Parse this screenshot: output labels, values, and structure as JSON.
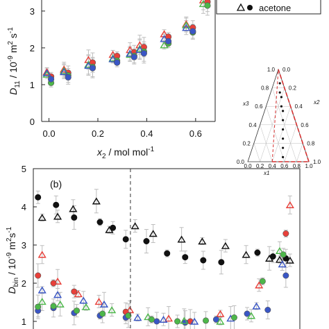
{
  "colors": {
    "red": "#e8403a",
    "green": "#4db74a",
    "blue": "#3a56c5",
    "black": "#111111",
    "error": "#bdbdbd",
    "frame": "#222222",
    "dash": "#d62e2e"
  },
  "chart_data": [
    {
      "type": "scatter",
      "panel_label": "",
      "xlabel": "x2 / mol mol-1",
      "ylabel": "D11 / 10-9 m2 s-1",
      "xlim": [
        -0.03,
        0.68
      ],
      "ylim": [
        0,
        3.3
      ],
      "x_ticks": [
        "0.0",
        "0.2",
        "0.4",
        "0.6"
      ],
      "y_ticks": [
        "0",
        "1",
        "2",
        "3"
      ],
      "legend": {
        "label": "acetone",
        "markers": [
          "open-triangle",
          "filled-circle"
        ],
        "placement": "top-right"
      },
      "series": [
        {
          "color": "red",
          "marker": "triangle",
          "x": [
            0.0,
            0.07,
            0.17,
            0.27,
            0.34,
            0.38,
            0.48,
            0.57,
            0.64
          ],
          "y": [
            1.35,
            1.42,
            1.68,
            1.82,
            1.95,
            2.08,
            2.38,
            2.65,
            3.3
          ]
        },
        {
          "color": "red",
          "marker": "circle",
          "x": [
            0.0,
            0.07,
            0.17,
            0.27,
            0.34,
            0.38,
            0.48,
            0.58,
            0.64
          ],
          "y": [
            1.22,
            1.32,
            1.6,
            1.78,
            1.88,
            2.02,
            2.3,
            2.55,
            3.25
          ]
        },
        {
          "color": "green",
          "marker": "triangle",
          "x": [
            0.0,
            0.07,
            0.17,
            0.27,
            0.34,
            0.38,
            0.48,
            0.57,
            0.64
          ],
          "y": [
            1.28,
            1.38,
            1.55,
            1.72,
            1.82,
            1.98,
            2.08,
            2.62,
            3.2
          ]
        },
        {
          "color": "green",
          "marker": "circle",
          "x": [
            0.0,
            0.07,
            0.17,
            0.27,
            0.34,
            0.38,
            0.48,
            0.58,
            0.64
          ],
          "y": [
            1.05,
            1.25,
            1.48,
            1.65,
            1.78,
            1.9,
            2.12,
            2.42,
            3.15
          ]
        },
        {
          "color": "blue",
          "marker": "triangle",
          "x": [
            0.0,
            0.07,
            0.17,
            0.27,
            0.34,
            0.38,
            0.48,
            0.57
          ],
          "y": [
            1.32,
            1.35,
            1.52,
            1.7,
            1.85,
            1.95,
            2.25,
            2.55
          ]
        },
        {
          "color": "blue",
          "marker": "circle",
          "x": [
            0.0,
            0.07,
            0.17,
            0.27,
            0.34,
            0.38,
            0.48,
            0.58
          ],
          "y": [
            1.15,
            1.2,
            1.45,
            1.6,
            1.75,
            1.85,
            2.18,
            2.45
          ]
        }
      ]
    },
    {
      "type": "ternary",
      "axis_labels": [
        "x1",
        "x2",
        "x3"
      ],
      "ticks": [
        "0.0",
        "0.2",
        "0.4",
        "0.6",
        "0.8",
        "1.0"
      ],
      "points": [
        [
          0.55,
          0.05
        ],
        [
          0.5,
          0.15
        ],
        [
          0.45,
          0.25
        ],
        [
          0.4,
          0.35
        ],
        [
          0.35,
          0.45
        ],
        [
          0.3,
          0.55
        ],
        [
          0.25,
          0.6
        ],
        [
          0.2,
          0.7
        ],
        [
          0.15,
          0.75
        ],
        [
          0.1,
          0.85
        ]
      ]
    },
    {
      "type": "scatter",
      "panel_label": "(b)",
      "ylabel": "Dbin / 10-9 m2 s-1",
      "xlim": [
        0,
        1
      ],
      "ylim": [
        0.9,
        5
      ],
      "y_ticks": [
        "1",
        "2",
        "3",
        "4",
        "5"
      ],
      "dashed_vline_x": 0.36,
      "series": [
        {
          "color": "black",
          "marker": "triangle",
          "x": [
            0.01,
            0.07,
            0.13,
            0.22,
            0.27,
            0.37,
            0.44,
            0.55,
            0.63,
            0.72,
            0.8,
            0.89,
            0.93,
            0.97
          ],
          "y": [
            3.72,
            3.75,
            3.95,
            4.15,
            3.4,
            3.5,
            3.3,
            3.15,
            3.1,
            2.98,
            2.75,
            2.65,
            2.62,
            2.6
          ]
        },
        {
          "color": "black",
          "marker": "circle",
          "x": [
            0.01,
            0.08,
            0.15,
            0.25,
            0.3,
            0.35,
            0.43,
            0.51,
            0.58,
            0.65,
            0.72,
            0.86,
            0.92,
            0.97
          ],
          "y": [
            4.25,
            4.05,
            3.72,
            3.6,
            3.45,
            3.15,
            3.1,
            2.78,
            2.68,
            2.6,
            2.55,
            2.8,
            2.7,
            2.65
          ]
        },
        {
          "color": "red",
          "marker": "triangle",
          "x": [
            0.01,
            0.07,
            0.15,
            0.23,
            0.35,
            0.5,
            0.7,
            0.85,
            0.97
          ],
          "y": [
            2.75,
            2.05,
            1.72,
            1.52,
            1.3,
            1.08,
            1.2,
            1.95,
            4.05
          ]
        },
        {
          "color": "red",
          "marker": "circle",
          "x": [
            0.01,
            0.07,
            0.15,
            0.35,
            0.6,
            0.97
          ],
          "y": [
            2.2,
            2.0,
            1.78,
            1.25,
            1.0,
            3.3
          ]
        },
        {
          "color": "blue",
          "marker": "triangle",
          "x": [
            0.01,
            0.07,
            0.17,
            0.25,
            0.38,
            0.48,
            0.6,
            0.74,
            0.84,
            0.94
          ],
          "y": [
            1.82,
            1.7,
            1.55,
            1.45,
            1.1,
            1.05,
            1.0,
            1.08,
            1.4,
            2.5
          ]
        },
        {
          "color": "blue",
          "marker": "circle",
          "x": [
            0.01,
            0.07,
            0.15,
            0.25,
            0.35,
            0.47,
            0.58,
            0.7,
            0.82,
            0.9,
            0.97
          ],
          "y": [
            1.28,
            1.35,
            1.22,
            1.15,
            1.1,
            1.0,
            0.97,
            1.05,
            1.2,
            1.3,
            2.2
          ]
        },
        {
          "color": "green",
          "marker": "triangle",
          "x": [
            0.01,
            0.08,
            0.18,
            0.28,
            0.42,
            0.56,
            0.7,
            0.82,
            0.93
          ],
          "y": [
            1.52,
            1.45,
            1.38,
            1.3,
            1.12,
            1.02,
            1.0,
            1.15,
            2.85
          ]
        },
        {
          "color": "green",
          "marker": "circle",
          "x": [
            0.01,
            0.07,
            0.16,
            0.26,
            0.36,
            0.45,
            0.55,
            0.66,
            0.77,
            0.88,
            0.96
          ],
          "y": [
            1.38,
            1.4,
            1.28,
            1.2,
            1.15,
            1.05,
            1.0,
            1.02,
            1.1,
            2.05,
            2.75
          ]
        }
      ]
    }
  ]
}
